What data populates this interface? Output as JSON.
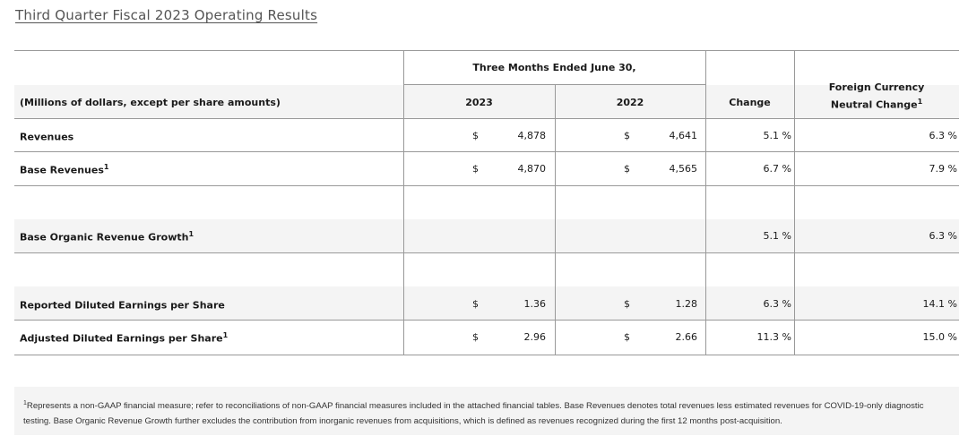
{
  "title": "Third Quarter Fiscal 2023 Operating Results",
  "header": {
    "group": "Three Months Ended June 30,",
    "label": "(Millions of dollars, except per share amounts)",
    "y2023": "2023",
    "y2022": "2022",
    "change": "Change",
    "fcnc_line1": "Foreign Currency",
    "fcnc_line2": "Neutral Change",
    "fcnc_sup": "1"
  },
  "rows": [
    {
      "label": "Revenues",
      "sup": "",
      "cur1": "$",
      "v2023": "4,878",
      "cur2": "$",
      "v2022": "4,641",
      "change": "5.1 %",
      "fcnc": "6.3 %"
    },
    {
      "label": "Base Revenues",
      "sup": "1",
      "cur1": "$",
      "v2023": "4,870",
      "cur2": "$",
      "v2022": "4,565",
      "change": "6.7 %",
      "fcnc": "7.9 %"
    },
    {
      "label": "Base Organic Revenue Growth",
      "sup": "1",
      "cur1": "",
      "v2023": "",
      "cur2": "",
      "v2022": "",
      "change": "5.1 %",
      "fcnc": "6.3 %"
    },
    {
      "label": "Reported Diluted Earnings per Share",
      "sup": "",
      "cur1": "$",
      "v2023": "1.36",
      "cur2": "$",
      "v2022": "1.28",
      "change": "6.3 %",
      "fcnc": "14.1 %"
    },
    {
      "label": "Adjusted Diluted Earnings per Share",
      "sup": "1",
      "cur1": "$",
      "v2023": "2.96",
      "cur2": "$",
      "v2022": "2.66",
      "change": "11.3 %",
      "fcnc": "15.0 %"
    }
  ],
  "footnote": {
    "sup": "1",
    "text": "Represents a non-GAAP financial measure; refer to reconciliations of non-GAAP financial measures included in the attached financial tables. Base Revenues denotes total revenues less estimated revenues for COVID-19-only diagnostic testing. Base Organic Revenue Growth further excludes the contribution from inorganic revenues from acquisitions, which is defined as revenues recognized during the first 12 months post-acquisition."
  }
}
